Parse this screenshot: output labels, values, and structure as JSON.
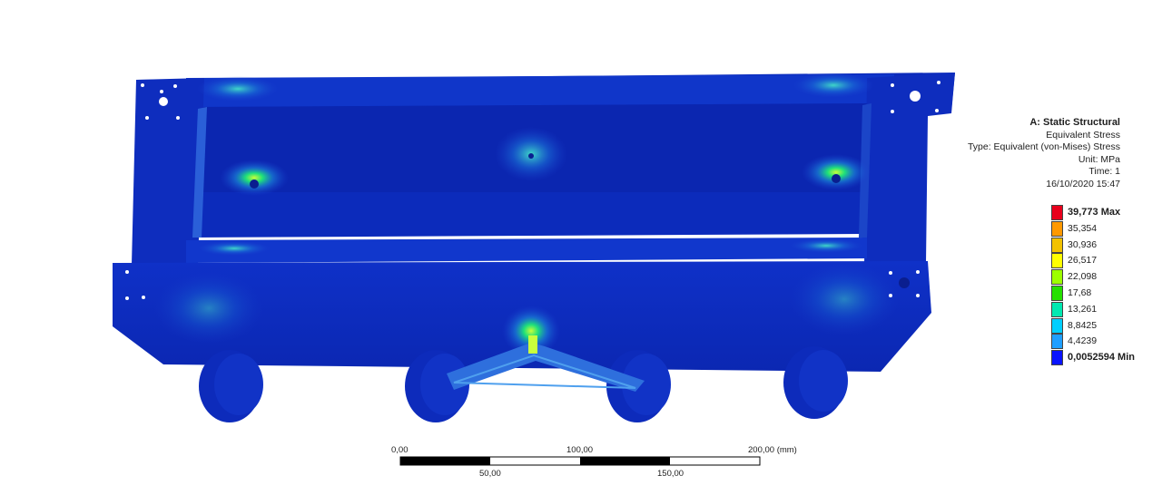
{
  "info": {
    "analysis_title": "A: Static Structural",
    "result_name": "Equivalent Stress",
    "type_line": "Type: Equivalent (von-Mises) Stress",
    "unit_line": "Unit: MPa",
    "time_line": "Time: 1",
    "timestamp": "16/10/2020 15:47"
  },
  "legend": {
    "entries": [
      {
        "label": "39,773 Max",
        "color": "#e8001c",
        "bold": true
      },
      {
        "label": "35,354",
        "color": "#ff9900"
      },
      {
        "label": "30,936",
        "color": "#f2c200"
      },
      {
        "label": "26,517",
        "color": "#ffff00"
      },
      {
        "label": "22,098",
        "color": "#9dff00"
      },
      {
        "label": "17,68",
        "color": "#25e000"
      },
      {
        "label": "13,261",
        "color": "#00e9b1"
      },
      {
        "label": "8,8425",
        "color": "#00cfff"
      },
      {
        "label": "4,4239",
        "color": "#1f9fff"
      },
      {
        "label": "0,0052594 Min",
        "color": "#0a14ff",
        "bold": true
      }
    ]
  },
  "scale_bar": {
    "top_labels": [
      "0,00",
      "100,00",
      "200,00 (mm)"
    ],
    "bottom_labels": [
      "50,00",
      "150,00"
    ]
  }
}
